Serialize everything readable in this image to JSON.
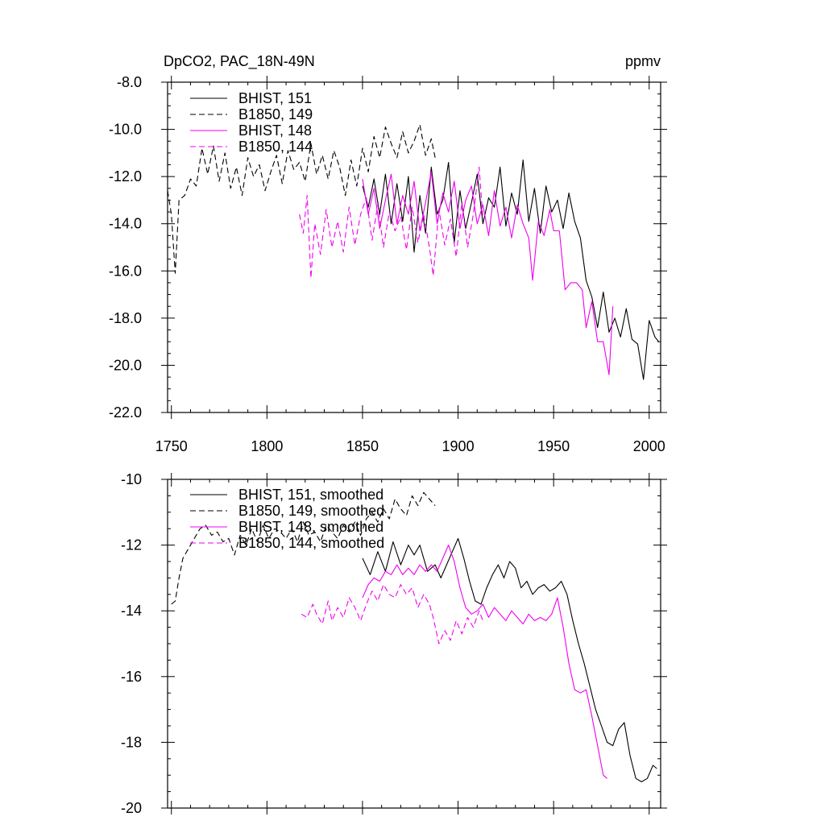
{
  "chart_data": [
    {
      "type": "line",
      "title": "DpCO2, PAC_18N-49N",
      "units": "ppmv",
      "ylim": [
        -22,
        -8
      ],
      "xlim": [
        1748,
        2006
      ],
      "xticks": [
        1750,
        1800,
        1850,
        1900,
        1950,
        2000
      ],
      "xtick_labels": [
        "1750",
        "1800",
        "1850",
        "1900",
        "1950",
        "2000"
      ],
      "yticks": [
        -8,
        -10,
        -12,
        -14,
        -16,
        -18,
        -20,
        -22
      ],
      "ytick_labels": [
        "-8.0",
        "-10.0",
        "-12.0",
        "-14.0",
        "-16.0",
        "-18.0",
        "-20.0",
        "-22.0"
      ],
      "legend_position": "top-left",
      "series": [
        {
          "name": "BHIST, 151",
          "color": "#000000",
          "dash": "solid",
          "x": [
            1850,
            1853,
            1856,
            1859,
            1862,
            1865,
            1868,
            1871,
            1874,
            1877,
            1880,
            1883,
            1886,
            1889,
            1892,
            1895,
            1898,
            1901,
            1904,
            1907,
            1910,
            1913,
            1916,
            1919,
            1922,
            1925,
            1928,
            1931,
            1934,
            1937,
            1940,
            1943,
            1946,
            1949,
            1952,
            1955,
            1958,
            1961,
            1964,
            1967,
            1970,
            1973,
            1976,
            1979,
            1982,
            1985,
            1988,
            1991,
            1994,
            1997,
            2000,
            2003,
            2005
          ],
          "values": [
            -12.4,
            -13.3,
            -12.1,
            -13.6,
            -11.9,
            -14.0,
            -12.3,
            -13.9,
            -12.0,
            -15.2,
            -12.8,
            -14.4,
            -11.6,
            -13.6,
            -13.0,
            -11.4,
            -14.8,
            -12.6,
            -14.2,
            -13.1,
            -11.9,
            -14.0,
            -12.9,
            -13.3,
            -11.6,
            -14.1,
            -12.7,
            -13.6,
            -11.3,
            -13.9,
            -12.5,
            -14.4,
            -12.4,
            -13.5,
            -13.0,
            -14.2,
            -12.7,
            -13.9,
            -14.6,
            -16.4,
            -17.1,
            -18.4,
            -16.9,
            -18.6,
            -18.0,
            -18.8,
            -17.6,
            -18.9,
            -19.1,
            -20.6,
            -18.1,
            -18.8,
            -19.0
          ]
        },
        {
          "name": "B1850, 149",
          "color": "#000000",
          "dash": "dashed",
          "x": [
            1748,
            1750,
            1752,
            1754,
            1757,
            1760,
            1763,
            1766,
            1769,
            1772,
            1775,
            1778,
            1781,
            1784,
            1787,
            1790,
            1793,
            1796,
            1799,
            1802,
            1805,
            1808,
            1811,
            1814,
            1817,
            1820,
            1823,
            1826,
            1829,
            1832,
            1835,
            1838,
            1841,
            1844,
            1847,
            1850,
            1853,
            1856,
            1859,
            1862,
            1865,
            1868,
            1871,
            1874,
            1877,
            1880,
            1883,
            1886,
            1888
          ],
          "values": [
            -12.6,
            -13.6,
            -16.1,
            -13.0,
            -12.8,
            -12.1,
            -12.4,
            -10.8,
            -11.9,
            -10.7,
            -12.2,
            -11.0,
            -12.5,
            -11.6,
            -12.8,
            -11.2,
            -12.0,
            -11.5,
            -12.6,
            -11.8,
            -11.1,
            -12.3,
            -10.9,
            -11.7,
            -11.4,
            -12.2,
            -10.6,
            -11.9,
            -11.1,
            -12.1,
            -10.9,
            -11.6,
            -12.8,
            -11.3,
            -12.4,
            -10.8,
            -11.8,
            -10.3,
            -11.2,
            -9.9,
            -10.6,
            -11.2,
            -10.1,
            -11.0,
            -10.5,
            -9.8,
            -11.1,
            -10.4,
            -11.2
          ]
        },
        {
          "name": "BHIST, 148",
          "color": "#ee00ee",
          "dash": "solid",
          "x": [
            1850,
            1853,
            1856,
            1859,
            1862,
            1865,
            1868,
            1871,
            1874,
            1877,
            1880,
            1883,
            1886,
            1889,
            1892,
            1895,
            1898,
            1901,
            1904,
            1907,
            1910,
            1913,
            1916,
            1919,
            1922,
            1925,
            1928,
            1931,
            1934,
            1937,
            1939,
            1942,
            1945,
            1948,
            1950,
            1953,
            1956,
            1959,
            1962,
            1965,
            1967,
            1970,
            1973,
            1976,
            1979,
            1981
          ],
          "values": [
            -12.1,
            -13.6,
            -12.5,
            -14.2,
            -13.0,
            -11.9,
            -14.0,
            -12.8,
            -13.6,
            -12.2,
            -14.3,
            -13.1,
            -11.8,
            -14.0,
            -12.7,
            -13.5,
            -12.2,
            -14.2,
            -13.0,
            -12.4,
            -14.0,
            -13.2,
            -14.5,
            -12.6,
            -14.1,
            -13.3,
            -14.6,
            -13.2,
            -14.0,
            -14.6,
            -16.4,
            -13.9,
            -14.5,
            -13.4,
            -14.3,
            -14.3,
            -16.8,
            -16.5,
            -16.5,
            -16.8,
            -18.4,
            -17.3,
            -19.0,
            -19.0,
            -20.4,
            -17.5
          ]
        },
        {
          "name": "B1850, 144",
          "color": "#ee00ee",
          "dash": "dashed",
          "x": [
            1817,
            1819,
            1821,
            1823,
            1825,
            1828,
            1831,
            1834,
            1837,
            1840,
            1843,
            1846,
            1849,
            1852,
            1855,
            1858,
            1861,
            1864,
            1867,
            1870,
            1873,
            1876,
            1879,
            1882,
            1885,
            1887,
            1890,
            1893,
            1896,
            1899,
            1902,
            1905,
            1908,
            1911,
            1913
          ],
          "values": [
            -13.6,
            -14.4,
            -12.8,
            -16.3,
            -14.0,
            -15.3,
            -13.4,
            -15.0,
            -13.9,
            -15.2,
            -13.3,
            -14.9,
            -13.6,
            -12.9,
            -14.7,
            -13.2,
            -15.0,
            -13.5,
            -14.3,
            -13.7,
            -15.1,
            -13.3,
            -14.8,
            -13.6,
            -15.0,
            -16.2,
            -13.4,
            -14.9,
            -13.8,
            -15.4,
            -13.1,
            -15.0,
            -13.6,
            -11.6,
            -13.8
          ]
        }
      ]
    },
    {
      "type": "line",
      "title": "",
      "units": "",
      "ylim": [
        -20,
        -10
      ],
      "xlim": [
        1748,
        2006
      ],
      "xticks": [
        1750,
        1800,
        1850,
        1900,
        1950,
        2000
      ],
      "yticks": [
        -10,
        -12,
        -14,
        -16,
        -18,
        -20
      ],
      "ytick_labels": [
        "-10",
        "-12",
        "-14",
        "-16",
        "-18",
        "-20"
      ],
      "legend_position": "top-left",
      "series": [
        {
          "name": "BHIST, 151, smoothed",
          "color": "#000000",
          "dash": "solid",
          "x": [
            1850,
            1854,
            1858,
            1862,
            1866,
            1870,
            1874,
            1877,
            1880,
            1884,
            1888,
            1891,
            1894,
            1897,
            1900,
            1903,
            1906,
            1909,
            1912,
            1915,
            1918,
            1921,
            1924,
            1927,
            1930,
            1933,
            1936,
            1939,
            1942,
            1945,
            1948,
            1951,
            1954,
            1957,
            1960,
            1963,
            1966,
            1969,
            1972,
            1975,
            1978,
            1981,
            1984,
            1987,
            1990,
            1993,
            1996,
            1999,
            2002,
            2004
          ],
          "values": [
            -12.4,
            -12.9,
            -12.2,
            -12.8,
            -11.9,
            -12.6,
            -12.0,
            -12.3,
            -12.0,
            -12.8,
            -12.6,
            -13.0,
            -12.6,
            -12.2,
            -11.8,
            -12.4,
            -13.1,
            -13.7,
            -13.8,
            -13.3,
            -12.9,
            -12.6,
            -13.0,
            -12.5,
            -12.7,
            -13.3,
            -13.1,
            -13.5,
            -13.3,
            -13.2,
            -13.4,
            -13.3,
            -13.1,
            -13.5,
            -14.3,
            -15.0,
            -15.6,
            -16.3,
            -17.0,
            -17.5,
            -18.0,
            -18.1,
            -17.6,
            -17.4,
            -18.4,
            -19.1,
            -19.2,
            -19.1,
            -18.7,
            -18.8
          ]
        },
        {
          "name": "B1850, 149, smoothed",
          "color": "#000000",
          "dash": "dashed",
          "x": [
            1750,
            1752,
            1754,
            1756,
            1759,
            1762,
            1765,
            1768,
            1771,
            1774,
            1777,
            1780,
            1783,
            1786,
            1789,
            1792,
            1795,
            1798,
            1801,
            1804,
            1807,
            1810,
            1813,
            1816,
            1819,
            1822,
            1825,
            1828,
            1831,
            1834,
            1837,
            1840,
            1843,
            1846,
            1849,
            1852,
            1855,
            1858,
            1861,
            1864,
            1867,
            1870,
            1873,
            1876,
            1879,
            1882,
            1885,
            1888
          ],
          "values": [
            -13.8,
            -13.7,
            -13.0,
            -12.4,
            -12.1,
            -11.8,
            -11.5,
            -11.4,
            -11.7,
            -11.6,
            -11.9,
            -11.8,
            -12.3,
            -11.7,
            -12.0,
            -11.5,
            -11.9,
            -11.4,
            -11.8,
            -11.5,
            -11.6,
            -11.8,
            -11.5,
            -11.9,
            -11.3,
            -11.7,
            -11.6,
            -11.9,
            -11.4,
            -11.6,
            -11.8,
            -11.4,
            -11.6,
            -11.3,
            -11.7,
            -11.2,
            -11.0,
            -11.3,
            -10.9,
            -11.2,
            -10.6,
            -10.9,
            -11.1,
            -10.5,
            -10.8,
            -10.4,
            -10.6,
            -10.8
          ]
        },
        {
          "name": "BHIST, 148, smoothed",
          "color": "#ee00ee",
          "dash": "solid",
          "x": [
            1850,
            1853,
            1856,
            1859,
            1862,
            1865,
            1868,
            1871,
            1874,
            1877,
            1880,
            1883,
            1886,
            1889,
            1892,
            1895,
            1898,
            1901,
            1904,
            1907,
            1910,
            1913,
            1916,
            1919,
            1922,
            1925,
            1928,
            1931,
            1934,
            1937,
            1940,
            1943,
            1946,
            1949,
            1952,
            1955,
            1958,
            1961,
            1964,
            1967,
            1970,
            1973,
            1976,
            1978
          ],
          "values": [
            -13.6,
            -13.2,
            -13.0,
            -13.1,
            -12.8,
            -12.9,
            -12.6,
            -12.9,
            -12.7,
            -12.9,
            -12.6,
            -12.8,
            -12.6,
            -12.8,
            -12.4,
            -12.0,
            -12.5,
            -13.3,
            -13.9,
            -14.1,
            -14.0,
            -13.8,
            -14.2,
            -13.9,
            -14.1,
            -14.3,
            -14.0,
            -14.2,
            -14.4,
            -14.1,
            -14.3,
            -14.2,
            -14.3,
            -14.1,
            -13.6,
            -14.5,
            -15.6,
            -16.4,
            -16.5,
            -16.4,
            -17.2,
            -18.1,
            -19.0,
            -19.1
          ]
        },
        {
          "name": "B1850, 144, smoothed",
          "color": "#ee00ee",
          "dash": "dashed",
          "x": [
            1818,
            1821,
            1824,
            1826,
            1829,
            1832,
            1834,
            1837,
            1840,
            1843,
            1846,
            1849,
            1852,
            1855,
            1858,
            1861,
            1864,
            1867,
            1870,
            1873,
            1876,
            1879,
            1882,
            1885,
            1887,
            1890,
            1893,
            1896,
            1899,
            1902,
            1905,
            1908,
            1911,
            1913
          ],
          "values": [
            -14.1,
            -14.2,
            -13.8,
            -14.1,
            -14.4,
            -13.7,
            -14.3,
            -13.9,
            -14.2,
            -13.6,
            -13.9,
            -14.3,
            -13.8,
            -13.4,
            -13.7,
            -13.2,
            -13.5,
            -13.6,
            -13.2,
            -13.5,
            -13.3,
            -13.9,
            -13.5,
            -13.8,
            -14.2,
            -15.0,
            -14.6,
            -14.9,
            -14.3,
            -14.7,
            -14.2,
            -14.5,
            -14.0,
            -14.3
          ]
        }
      ]
    }
  ]
}
